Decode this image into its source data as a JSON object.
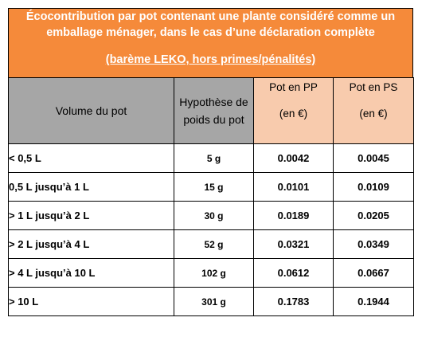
{
  "banner": {
    "title": "Écocontribution par pot contenant une plante considéré comme un emballage ménager, dans le cas d’une déclaration complète",
    "subtitle": "(barème LEKO, hors primes/pénalités)"
  },
  "table": {
    "headers": {
      "volume": "Volume du pot",
      "weight": "Hypothèse de poids du pot",
      "pp_label": "Pot en PP",
      "pp_unit": "(en €)",
      "ps_label": "Pot en PS",
      "ps_unit": "(en €)"
    },
    "rows": [
      {
        "volume": "< 0,5 L",
        "weight": "5 g",
        "pp": "0.0042",
        "ps": "0.0045"
      },
      {
        "volume": "0,5 L jusqu’à 1 L",
        "weight": "15 g",
        "pp": "0.0101",
        "ps": "0.0109"
      },
      {
        "volume": "> 1 L jusqu’à 2 L",
        "weight": "30 g",
        "pp": "0.0189",
        "ps": "0.0205"
      },
      {
        "volume": "> 2 L jusqu’à 4 L",
        "weight": "52 g",
        "pp": "0.0321",
        "ps": "0.0349"
      },
      {
        "volume": "> 4 L jusqu’à 10 L",
        "weight": "102 g",
        "pp": "0.0612",
        "ps": "0.0667"
      },
      {
        "volume": "> 10 L",
        "weight": "301 g",
        "pp": "0.1783",
        "ps": "0.1944"
      }
    ]
  },
  "colors": {
    "banner_bg": "#f58a3a",
    "header_gray": "#a6a6a6",
    "header_peach": "#f8cbad"
  }
}
